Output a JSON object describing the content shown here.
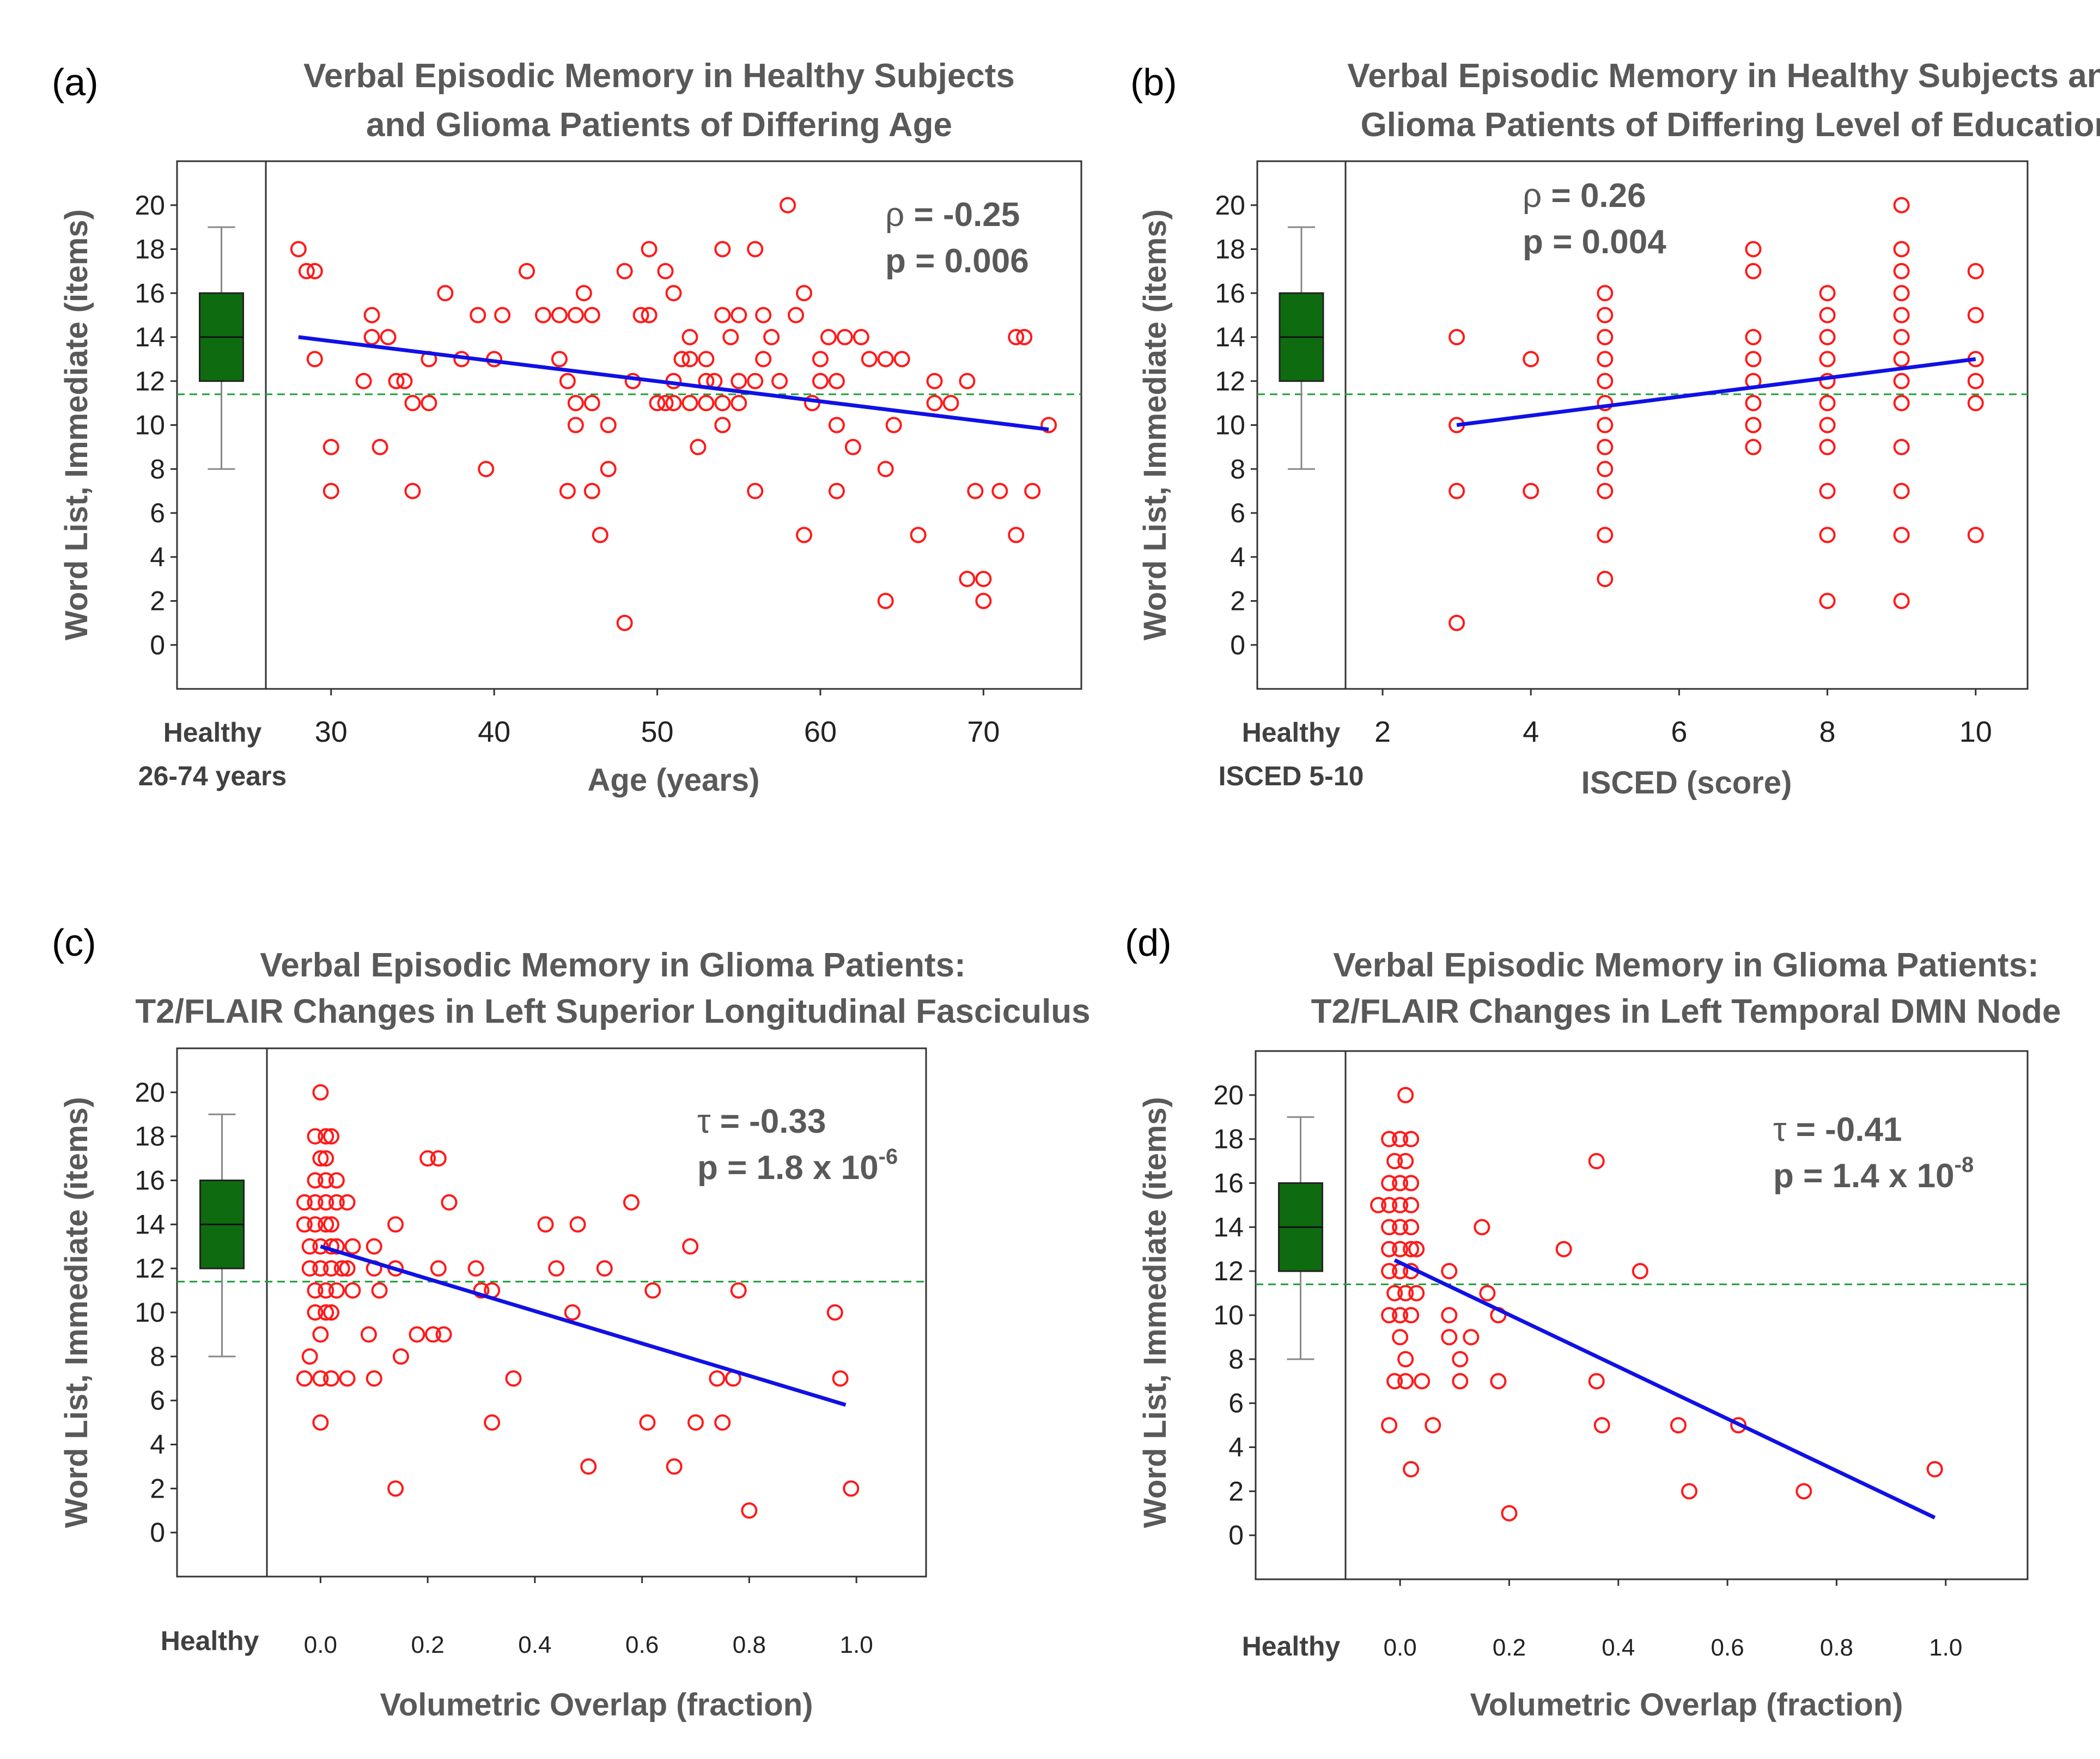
{
  "chart_data": [
    {
      "panel": "(a)",
      "type": "scatter",
      "title": [
        "Verbal Episodic Memory in Healthy Subjects",
        "and Glioma Patients of Differing Age"
      ],
      "xlabel": "Age (years)",
      "ylabel": "Word List, Immediate (items)",
      "xlim": [
        26,
        76
      ],
      "ylim": [
        -2,
        22
      ],
      "xticks": [
        30,
        40,
        50,
        60,
        70
      ],
      "yticks": [
        0,
        2,
        4,
        6,
        8,
        10,
        12,
        14,
        16,
        18,
        20
      ],
      "healthy_label": [
        "Healthy",
        "26-74 years"
      ],
      "healthy_box": {
        "whisker_low": 8,
        "q1": 12,
        "median": 14,
        "q3": 16,
        "whisker_high": 19
      },
      "cutoff": 11.4,
      "stat_lines": [
        {
          "symbol": "ρ",
          "text": " = -0.25"
        },
        {
          "symbol": "",
          "text": "p = 0.006"
        }
      ],
      "regression": {
        "x1": 28,
        "y1": 14,
        "x2": 74,
        "y2": 9.8
      },
      "points": [
        [
          28,
          18
        ],
        [
          28.5,
          17
        ],
        [
          29,
          17
        ],
        [
          29,
          13
        ],
        [
          30,
          9
        ],
        [
          30,
          7
        ],
        [
          32,
          12
        ],
        [
          32.5,
          15
        ],
        [
          32.5,
          14
        ],
        [
          33,
          9
        ],
        [
          33.5,
          14
        ],
        [
          34,
          12
        ],
        [
          34.5,
          12
        ],
        [
          35,
          7
        ],
        [
          35,
          11
        ],
        [
          36,
          11
        ],
        [
          36,
          13
        ],
        [
          37,
          16
        ],
        [
          38,
          13
        ],
        [
          39,
          15
        ],
        [
          39.5,
          8
        ],
        [
          40,
          13
        ],
        [
          40.5,
          15
        ],
        [
          42,
          17
        ],
        [
          43,
          15
        ],
        [
          44,
          15
        ],
        [
          44,
          13
        ],
        [
          44.5,
          12
        ],
        [
          44.5,
          7
        ],
        [
          45,
          15
        ],
        [
          45,
          11
        ],
        [
          45,
          10
        ],
        [
          45.5,
          16
        ],
        [
          46,
          11
        ],
        [
          46,
          15
        ],
        [
          46,
          7
        ],
        [
          46.5,
          5
        ],
        [
          47,
          10
        ],
        [
          47,
          8
        ],
        [
          48,
          1
        ],
        [
          48,
          17
        ],
        [
          48.5,
          12
        ],
        [
          49,
          15
        ],
        [
          49.5,
          18
        ],
        [
          49.5,
          15
        ],
        [
          50,
          11
        ],
        [
          50.5,
          11
        ],
        [
          50.5,
          17
        ],
        [
          51,
          16
        ],
        [
          51,
          12
        ],
        [
          51,
          11
        ],
        [
          51.5,
          13
        ],
        [
          52,
          14
        ],
        [
          52,
          13
        ],
        [
          52,
          11
        ],
        [
          52.5,
          9
        ],
        [
          53,
          12
        ],
        [
          53,
          13
        ],
        [
          53,
          11
        ],
        [
          53.5,
          12
        ],
        [
          54,
          18
        ],
        [
          54,
          15
        ],
        [
          54,
          11
        ],
        [
          54,
          10
        ],
        [
          54.5,
          14
        ],
        [
          55,
          12
        ],
        [
          55,
          11
        ],
        [
          55,
          15
        ],
        [
          56,
          18
        ],
        [
          56,
          12
        ],
        [
          56,
          7
        ],
        [
          56.5,
          15
        ],
        [
          56.5,
          13
        ],
        [
          57,
          14
        ],
        [
          57.5,
          12
        ],
        [
          58,
          20
        ],
        [
          58.5,
          15
        ],
        [
          59,
          16
        ],
        [
          59,
          5
        ],
        [
          59.5,
          11
        ],
        [
          60,
          13
        ],
        [
          60,
          12
        ],
        [
          60.5,
          14
        ],
        [
          61,
          10
        ],
        [
          61,
          12
        ],
        [
          61,
          7
        ],
        [
          61.5,
          14
        ],
        [
          62,
          9
        ],
        [
          62.5,
          14
        ],
        [
          63,
          13
        ],
        [
          64,
          13
        ],
        [
          64,
          8
        ],
        [
          64,
          2
        ],
        [
          64.5,
          10
        ],
        [
          65,
          13
        ],
        [
          66,
          5
        ],
        [
          67,
          11
        ],
        [
          67,
          12
        ],
        [
          68,
          11
        ],
        [
          69,
          12
        ],
        [
          69,
          3
        ],
        [
          69.5,
          7
        ],
        [
          70,
          3
        ],
        [
          70,
          2
        ],
        [
          71,
          7
        ],
        [
          72,
          5
        ],
        [
          72,
          14
        ],
        [
          72.5,
          14
        ],
        [
          73,
          7
        ],
        [
          74,
          10
        ]
      ]
    },
    {
      "panel": "(b)",
      "type": "scatter",
      "title": [
        "Verbal Episodic Memory in Healthy Subjects and",
        "Glioma Patients  of Differing Level of Education"
      ],
      "xlabel": "ISCED (score)",
      "ylabel": "Word List, Immediate (items)",
      "xlim": [
        1.5,
        10.7
      ],
      "ylim": [
        -2,
        22
      ],
      "xticks": [
        2,
        4,
        6,
        8,
        10
      ],
      "yticks": [
        0,
        2,
        4,
        6,
        8,
        10,
        12,
        14,
        16,
        18,
        20
      ],
      "healthy_label": [
        "Healthy",
        "ISCED 5-10"
      ],
      "healthy_box": {
        "whisker_low": 8,
        "q1": 12,
        "median": 14,
        "q3": 16,
        "whisker_high": 19
      },
      "cutoff": 11.4,
      "stat_lines": [
        {
          "symbol": "ρ",
          "text": " = 0.26"
        },
        {
          "symbol": "",
          "text": "p = 0.004"
        }
      ],
      "regression": {
        "x1": 3,
        "y1": 10,
        "x2": 10,
        "y2": 13
      },
      "points": [
        [
          3,
          14
        ],
        [
          3,
          10
        ],
        [
          3,
          7
        ],
        [
          3,
          1
        ],
        [
          4,
          13
        ],
        [
          4,
          7
        ],
        [
          5,
          16
        ],
        [
          5,
          15
        ],
        [
          5,
          14
        ],
        [
          5,
          13
        ],
        [
          5,
          12
        ],
        [
          5,
          11
        ],
        [
          5,
          10
        ],
        [
          5,
          9
        ],
        [
          5,
          8
        ],
        [
          5,
          7
        ],
        [
          5,
          5
        ],
        [
          5,
          3
        ],
        [
          7,
          18
        ],
        [
          7,
          17
        ],
        [
          7,
          14
        ],
        [
          7,
          13
        ],
        [
          7,
          12
        ],
        [
          7,
          11
        ],
        [
          7,
          10
        ],
        [
          7,
          9
        ],
        [
          8,
          16
        ],
        [
          8,
          15
        ],
        [
          8,
          14
        ],
        [
          8,
          13
        ],
        [
          8,
          12
        ],
        [
          8,
          11
        ],
        [
          8,
          10
        ],
        [
          8,
          9
        ],
        [
          8,
          7
        ],
        [
          8,
          5
        ],
        [
          8,
          2
        ],
        [
          9,
          20
        ],
        [
          9,
          18
        ],
        [
          9,
          17
        ],
        [
          9,
          16
        ],
        [
          9,
          15
        ],
        [
          9,
          14
        ],
        [
          9,
          13
        ],
        [
          9,
          12
        ],
        [
          9,
          11
        ],
        [
          9,
          9
        ],
        [
          9,
          7
        ],
        [
          9,
          5
        ],
        [
          9,
          2
        ],
        [
          10,
          17
        ],
        [
          10,
          15
        ],
        [
          10,
          13
        ],
        [
          10,
          12
        ],
        [
          10,
          11
        ],
        [
          10,
          5
        ]
      ]
    },
    {
      "panel": "(c)",
      "type": "scatter",
      "title": [
        "Verbal Episodic Memory in Glioma Patients:",
        "T2/FLAIR Changes in Left Superior Longitudinal Fasciculus"
      ],
      "xlabel": "Volumetric Overlap (fraction)",
      "ylabel": "Word List, Immediate (items)",
      "xlim": [
        -0.1,
        1.13
      ],
      "ylim": [
        -2,
        22
      ],
      "xticks": [
        "0.0",
        "0.2",
        "0.4",
        "0.6",
        "0.8",
        "1.0"
      ],
      "yticks": [
        0,
        2,
        4,
        6,
        8,
        10,
        12,
        14,
        16,
        18,
        20
      ],
      "healthy_label": [
        "Healthy"
      ],
      "healthy_box": {
        "whisker_low": 8,
        "q1": 12,
        "median": 14,
        "q3": 16,
        "whisker_high": 19
      },
      "cutoff": 11.4,
      "stat_lines": [
        {
          "symbol": "τ",
          "text": " = -0.33"
        },
        {
          "symbol": "",
          "text": "p = 1.8 x 10",
          "sup": "-6"
        }
      ],
      "regression": {
        "x1": 0,
        "y1": 13,
        "x2": 0.98,
        "y2": 5.8
      },
      "points": [
        [
          0,
          20
        ],
        [
          -0.01,
          18
        ],
        [
          0.01,
          18
        ],
        [
          0.02,
          18
        ],
        [
          0,
          17
        ],
        [
          0.01,
          17
        ],
        [
          -0.01,
          16
        ],
        [
          0.01,
          16
        ],
        [
          0.03,
          16
        ],
        [
          -0.03,
          15
        ],
        [
          -0.01,
          15
        ],
        [
          0.01,
          15
        ],
        [
          0.03,
          15
        ],
        [
          -0.03,
          14
        ],
        [
          -0.01,
          14
        ],
        [
          0.01,
          14
        ],
        [
          0.02,
          14
        ],
        [
          -0.02,
          13
        ],
        [
          0,
          13
        ],
        [
          0.02,
          13
        ],
        [
          0.03,
          13
        ],
        [
          -0.02,
          12
        ],
        [
          0,
          12
        ],
        [
          0.02,
          12
        ],
        [
          0.04,
          12
        ],
        [
          -0.01,
          11
        ],
        [
          0.01,
          11
        ],
        [
          0.03,
          11
        ],
        [
          -0.01,
          10
        ],
        [
          0.01,
          10
        ],
        [
          0.02,
          10
        ],
        [
          0,
          9
        ],
        [
          -0.02,
          8
        ],
        [
          -0.03,
          7
        ],
        [
          0,
          7
        ],
        [
          0.02,
          7
        ],
        [
          0,
          5
        ],
        [
          0.05,
          15
        ],
        [
          0.05,
          12
        ],
        [
          0.06,
          13
        ],
        [
          0.06,
          11
        ],
        [
          0.09,
          9
        ],
        [
          0.1,
          13
        ],
        [
          0.1,
          12
        ],
        [
          0.1,
          7
        ],
        [
          0.11,
          11
        ],
        [
          0.05,
          7
        ],
        [
          0.14,
          14
        ],
        [
          0.14,
          12
        ],
        [
          0.15,
          8
        ],
        [
          0.14,
          2
        ],
        [
          0.18,
          9
        ],
        [
          0.2,
          17
        ],
        [
          0.22,
          17
        ],
        [
          0.21,
          9
        ],
        [
          0.22,
          12
        ],
        [
          0.23,
          9
        ],
        [
          0.24,
          15
        ],
        [
          0.29,
          12
        ],
        [
          0.3,
          11
        ],
        [
          0.32,
          11
        ],
        [
          0.32,
          5
        ],
        [
          0.36,
          7
        ],
        [
          0.42,
          14
        ],
        [
          0.44,
          12
        ],
        [
          0.48,
          14
        ],
        [
          0.47,
          10
        ],
        [
          0.5,
          3
        ],
        [
          0.53,
          12
        ],
        [
          0.58,
          15
        ],
        [
          0.61,
          5
        ],
        [
          0.62,
          11
        ],
        [
          0.66,
          3
        ],
        [
          0.69,
          13
        ],
        [
          0.7,
          5
        ],
        [
          0.74,
          7
        ],
        [
          0.75,
          5
        ],
        [
          0.77,
          7
        ],
        [
          0.78,
          11
        ],
        [
          0.8,
          1
        ],
        [
          0.96,
          10
        ],
        [
          0.97,
          7
        ],
        [
          0.99,
          2
        ]
      ]
    },
    {
      "panel": "(d)",
      "type": "scatter",
      "title": [
        "Verbal Episodic Memory in Glioma Patients:",
        "T2/FLAIR Changes in Left Temporal DMN Node"
      ],
      "xlabel": "Volumetric Overlap (fraction)",
      "ylabel": "Word List, Immediate (items)",
      "xlim": [
        -0.1,
        1.15
      ],
      "ylim": [
        -2,
        22
      ],
      "xticks": [
        "0.0",
        "0.2",
        "0.4",
        "0.6",
        "0.8",
        "1.0"
      ],
      "yticks": [
        0,
        2,
        4,
        6,
        8,
        10,
        12,
        14,
        16,
        18,
        20
      ],
      "healthy_label": [
        "Healthy"
      ],
      "healthy_box": {
        "whisker_low": 8,
        "q1": 12,
        "median": 14,
        "q3": 16,
        "whisker_high": 19
      },
      "cutoff": 11.4,
      "stat_lines": [
        {
          "symbol": "τ",
          "text": " = -0.41"
        },
        {
          "symbol": "",
          "text": "p = 1.4 x 10",
          "sup": "-8"
        }
      ],
      "regression": {
        "x1": -0.01,
        "y1": 12.5,
        "x2": 0.98,
        "y2": 0.8
      },
      "points": [
        [
          0.01,
          20
        ],
        [
          -0.02,
          18
        ],
        [
          0,
          18
        ],
        [
          0.02,
          18
        ],
        [
          -0.01,
          17
        ],
        [
          0.01,
          17
        ],
        [
          -0.02,
          16
        ],
        [
          0,
          16
        ],
        [
          0.02,
          16
        ],
        [
          -0.04,
          15
        ],
        [
          -0.02,
          15
        ],
        [
          0,
          15
        ],
        [
          0.02,
          15
        ],
        [
          -0.02,
          14
        ],
        [
          0,
          14
        ],
        [
          0.02,
          14
        ],
        [
          -0.02,
          13
        ],
        [
          0,
          13
        ],
        [
          0.02,
          13
        ],
        [
          0.03,
          13
        ],
        [
          -0.02,
          12
        ],
        [
          0,
          12
        ],
        [
          0.02,
          12
        ],
        [
          -0.01,
          11
        ],
        [
          0.01,
          11
        ],
        [
          0.03,
          11
        ],
        [
          -0.02,
          10
        ],
        [
          0,
          10
        ],
        [
          0.02,
          10
        ],
        [
          0,
          9
        ],
        [
          0.01,
          8
        ],
        [
          -0.01,
          7
        ],
        [
          0.01,
          7
        ],
        [
          0.04,
          7
        ],
        [
          -0.02,
          5
        ],
        [
          0.02,
          3
        ],
        [
          0.06,
          5
        ],
        [
          0.09,
          12
        ],
        [
          0.09,
          10
        ],
        [
          0.09,
          9
        ],
        [
          0.11,
          8
        ],
        [
          0.11,
          7
        ],
        [
          0.13,
          9
        ],
        [
          0.15,
          14
        ],
        [
          0.16,
          11
        ],
        [
          0.18,
          10
        ],
        [
          0.18,
          7
        ],
        [
          0.2,
          1
        ],
        [
          0.3,
          13
        ],
        [
          0.36,
          17
        ],
        [
          0.36,
          7
        ],
        [
          0.37,
          5
        ],
        [
          0.44,
          12
        ],
        [
          0.51,
          5
        ],
        [
          0.53,
          2
        ],
        [
          0.62,
          5
        ],
        [
          0.74,
          2
        ],
        [
          0.98,
          3
        ]
      ]
    }
  ]
}
